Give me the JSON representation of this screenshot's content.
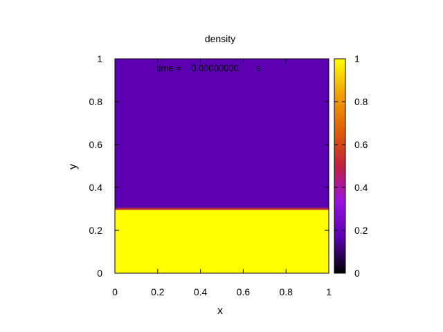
{
  "chart_data": {
    "type": "heatmap",
    "title": "density",
    "annotation": "time =    0.00000000       s",
    "xlabel": "x",
    "ylabel": "y",
    "xlim": [
      0,
      1
    ],
    "ylim": [
      0,
      1
    ],
    "xticks": [
      "0",
      "0.2",
      "0.4",
      "0.6",
      "0.8",
      "1"
    ],
    "yticks": [
      "0",
      "0.2",
      "0.4",
      "0.6",
      "0.8",
      "1"
    ],
    "colorbar": {
      "range": [
        0,
        1
      ],
      "ticks": [
        "0",
        "0.2",
        "0.4",
        "0.6",
        "0.8",
        "1"
      ],
      "palette": [
        "#000000",
        "#5a00b0",
        "#9a10e0",
        "#c02040",
        "#e06000",
        "#f0a000",
        "#ffff00"
      ]
    },
    "regions": [
      {
        "y_from": 0,
        "y_to": 0.3,
        "value": 1.0,
        "color": "#ffff00"
      },
      {
        "y_from": 0.3,
        "y_to": 1.0,
        "value": 0.1,
        "color": "#5a00b0"
      }
    ],
    "interface": {
      "y": 0.3,
      "color": "#c03040"
    }
  }
}
